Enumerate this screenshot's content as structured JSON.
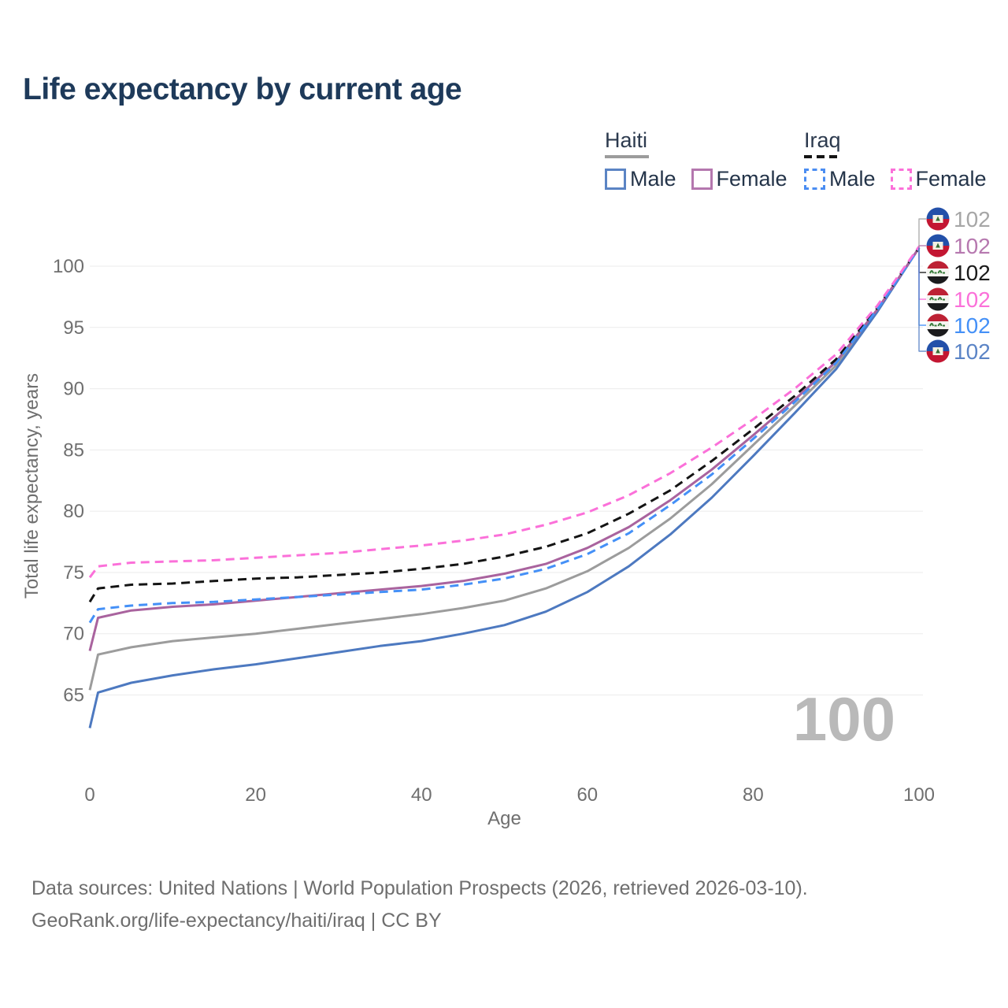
{
  "title": "Life expectancy by current age",
  "legend": {
    "groups": [
      {
        "label": "Haiti",
        "line_style": "solid",
        "header_swatch_color": "#9c9c9c",
        "items": [
          {
            "label": "Male",
            "color": "#5b84c4",
            "dashed": false
          },
          {
            "label": "Female",
            "color": "#b477ae",
            "dashed": false
          }
        ]
      },
      {
        "label": "Iraq",
        "line_style": "dashed",
        "header_swatch_color": "#141414",
        "items": [
          {
            "label": "Male",
            "color": "#4a8df2",
            "dashed": true
          },
          {
            "label": "Female",
            "color": "#fb70d9",
            "dashed": true
          }
        ]
      }
    ]
  },
  "watermark": "100",
  "footer": {
    "line1": "Data sources: United Nations | World Population Prospects (2026, retrieved 2026-03-10).",
    "line2": "GeoRank.org/life-expectancy/haiti/iraq | CC BY"
  },
  "chart_data": {
    "type": "line",
    "title": "Life expectancy by current age",
    "xlabel": "Age",
    "ylabel": "Total life expectancy, years",
    "xlim": [
      0,
      100
    ],
    "ylim": [
      62,
      102
    ],
    "x_ticks": [
      0,
      20,
      40,
      60,
      80,
      100
    ],
    "y_ticks": [
      65,
      70,
      75,
      80,
      85,
      90,
      95,
      100
    ],
    "grid": "horizontal",
    "legend_position": "top-right",
    "grid_color": "#ebebeb",
    "axis_text_color": "#6f6f6f",
    "ages": [
      0,
      1,
      5,
      10,
      15,
      20,
      25,
      30,
      35,
      40,
      45,
      50,
      55,
      60,
      65,
      70,
      75,
      80,
      85,
      90,
      95,
      100
    ],
    "series": [
      {
        "id": "haiti-total",
        "country": "Haiti",
        "sex": "Both",
        "flag": "haiti",
        "color": "#9c9c9c",
        "dashed": false,
        "end_label": "102",
        "end_label_color": "#a6a6a6",
        "label_slot": 0,
        "values": [
          65.4,
          68.3,
          68.9,
          69.4,
          69.7,
          70.0,
          70.4,
          70.8,
          71.2,
          71.6,
          72.1,
          72.7,
          73.7,
          75.1,
          77.0,
          79.4,
          82.2,
          85.4,
          88.6,
          91.9,
          96.4,
          101.5
        ]
      },
      {
        "id": "haiti-male",
        "country": "Haiti",
        "sex": "Male",
        "flag": "haiti",
        "color": "#4d79c0",
        "dashed": false,
        "end_label": "102",
        "end_label_color": "#5b84c6",
        "label_slot": 5,
        "values": [
          62.3,
          65.2,
          66.0,
          66.6,
          67.1,
          67.5,
          68.0,
          68.5,
          69.0,
          69.4,
          70.0,
          70.7,
          71.8,
          73.4,
          75.5,
          78.1,
          81.1,
          84.5,
          88.0,
          91.6,
          96.3,
          101.5
        ]
      },
      {
        "id": "haiti-female",
        "country": "Haiti",
        "sex": "Female",
        "flag": "haiti",
        "color": "#a9639e",
        "dashed": false,
        "end_label": "102",
        "end_label_color": "#b678af",
        "label_slot": 1,
        "values": [
          68.6,
          71.3,
          71.9,
          72.2,
          72.4,
          72.7,
          73.0,
          73.3,
          73.6,
          73.9,
          74.3,
          74.9,
          75.7,
          77.0,
          78.7,
          80.9,
          83.4,
          86.2,
          89.1,
          92.2,
          96.5,
          101.5
        ]
      },
      {
        "id": "iraq-total",
        "country": "Iraq",
        "sex": "Both",
        "flag": "iraq",
        "color": "#141414",
        "dashed": true,
        "end_label": "102",
        "end_label_color": "#1a1a1a",
        "label_slot": 2,
        "values": [
          72.6,
          73.7,
          74.0,
          74.1,
          74.3,
          74.5,
          74.6,
          74.8,
          75.0,
          75.3,
          75.7,
          76.3,
          77.1,
          78.2,
          79.8,
          81.7,
          84.1,
          86.7,
          89.4,
          92.4,
          96.6,
          101.5
        ]
      },
      {
        "id": "iraq-male",
        "country": "Iraq",
        "sex": "Male",
        "flag": "iraq",
        "color": "#4490f7",
        "dashed": true,
        "end_label": "102",
        "end_label_color": "#4490f7",
        "label_slot": 4,
        "values": [
          70.9,
          72.0,
          72.3,
          72.5,
          72.6,
          72.8,
          73.0,
          73.2,
          73.4,
          73.6,
          74.0,
          74.5,
          75.3,
          76.5,
          78.2,
          80.5,
          83.0,
          85.9,
          88.9,
          92.1,
          96.5,
          101.5
        ]
      },
      {
        "id": "iraq-female",
        "country": "Iraq",
        "sex": "Female",
        "flag": "iraq",
        "color": "#fb70d9",
        "dashed": true,
        "end_label": "102",
        "end_label_color": "#fb70d9",
        "label_slot": 3,
        "values": [
          74.6,
          75.5,
          75.8,
          75.9,
          76.0,
          76.2,
          76.4,
          76.6,
          76.9,
          77.2,
          77.6,
          78.1,
          78.9,
          79.9,
          81.3,
          83.1,
          85.2,
          87.5,
          90.0,
          92.8,
          96.8,
          101.6
        ]
      }
    ],
    "flag_colors": {
      "haiti": {
        "top": "#2350a9",
        "bottom": "#c31632",
        "panel": "#f4f1e4",
        "emblem": "#356e34"
      },
      "iraq": {
        "top": "#bd2134",
        "middle": "#f5f4f0",
        "bottom": "#1b1b1d",
        "script": "#357a38"
      }
    }
  }
}
